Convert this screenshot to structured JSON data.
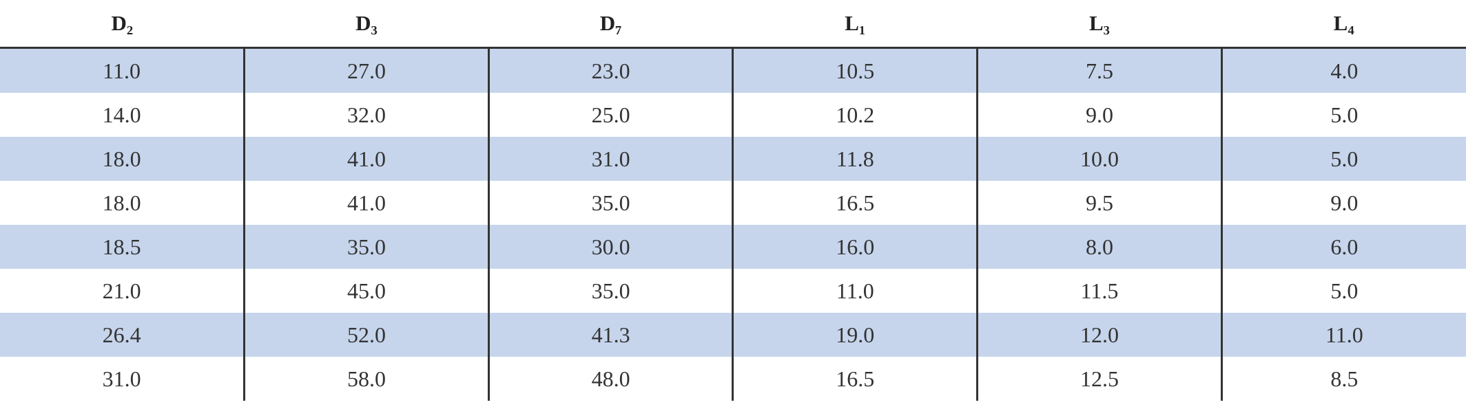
{
  "table": {
    "header": [
      "D₂",
      "D₃",
      "D₇",
      "L₁",
      "L₃",
      "L₄"
    ],
    "rows": [
      [
        "11.0",
        "27.0",
        "23.0",
        "10.5",
        "7.5",
        "4.0"
      ],
      [
        "14.0",
        "32.0",
        "25.0",
        "10.2",
        "9.0",
        "5.0"
      ],
      [
        "18.0",
        "41.0",
        "31.0",
        "11.8",
        "10.0",
        "5.0"
      ],
      [
        "18.0",
        "41.0",
        "35.0",
        "16.5",
        "9.5",
        "9.0"
      ],
      [
        "18.5",
        "35.0",
        "30.0",
        "16.0",
        "8.0",
        "6.0"
      ],
      [
        "21.0",
        "45.0",
        "35.0",
        "11.0",
        "11.5",
        "5.0"
      ],
      [
        "26.4",
        "52.0",
        "41.3",
        "19.0",
        "12.0",
        "11.0"
      ],
      [
        "31.0",
        "58.0",
        "48.0",
        "16.5",
        "12.5",
        "8.5"
      ]
    ]
  }
}
